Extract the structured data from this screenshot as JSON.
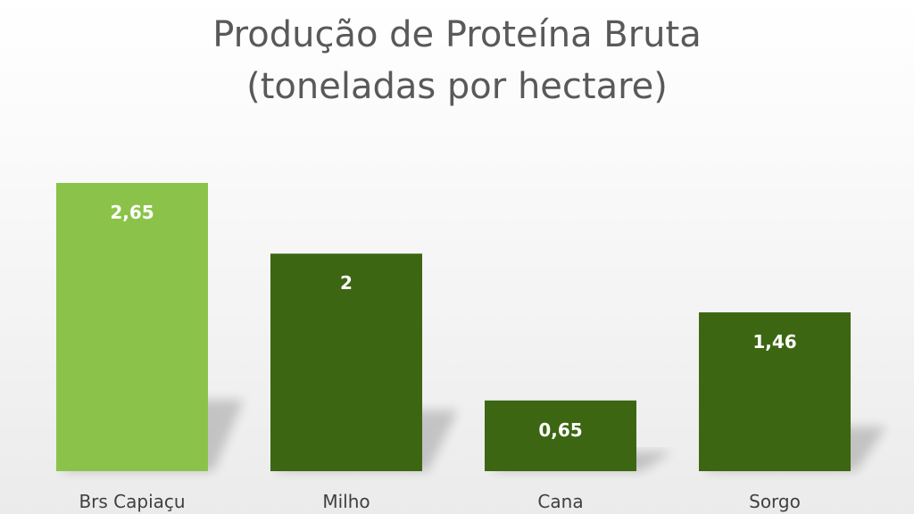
{
  "chart_data": {
    "type": "bar",
    "title_lines": [
      "Produção de Proteína Bruta",
      "(toneladas por hectare)"
    ],
    "categories": [
      "Brs Capiaçu",
      "Milho",
      "Cana",
      "Sorgo"
    ],
    "values": [
      2.65,
      2,
      0.65,
      1.46
    ],
    "data_labels": [
      "2,65",
      "2",
      "0,65",
      "1,46"
    ],
    "bar_colors": [
      "#8bc34a",
      "#3d6613",
      "#3d6613",
      "#3d6613"
    ],
    "ylim": [
      0,
      2.65
    ],
    "xlabel": "",
    "ylabel": "",
    "grid": false,
    "legend": "none"
  }
}
